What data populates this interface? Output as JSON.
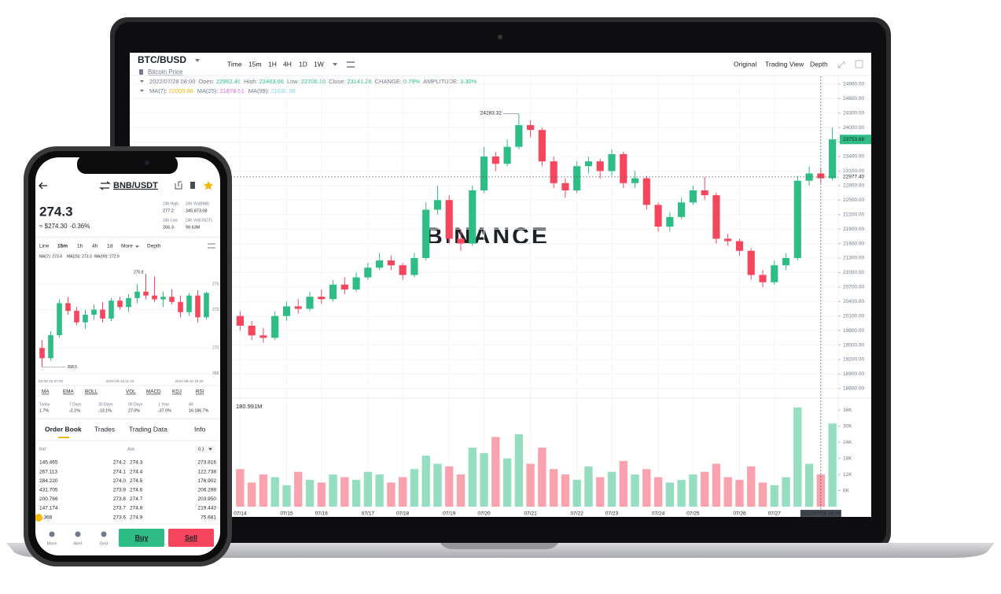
{
  "laptop": {
    "pair": "BTC/BUSD",
    "subtitle": "Bitcoin Price",
    "intervals": [
      "Time",
      "15m",
      "1H",
      "4H",
      "1D",
      "1W"
    ],
    "active_interval": "4H",
    "views": [
      "Original",
      "Trading View",
      "Depth"
    ],
    "active_view": "Original",
    "info_time": "2022/07/28 08:00",
    "info": [
      {
        "label": "Open:",
        "value": "22962.49"
      },
      {
        "label": "High:",
        "value": "23463.66"
      },
      {
        "label": "Low:",
        "value": "22706.10"
      },
      {
        "label": "Close:",
        "value": "23141.26"
      },
      {
        "label": "CHANGE:",
        "value": "0.79%"
      },
      {
        "label": "AMPLITUDE:",
        "value": "3.30%"
      }
    ],
    "ma_legend": [
      {
        "label": "MA(7):",
        "value": "22005.86",
        "color": "#f0b90b"
      },
      {
        "label": "MA(25):",
        "value": "21878.51",
        "color": "#e05fd7"
      },
      {
        "label": "MA(99):",
        "value": "21630.98",
        "color": "#7fdbe8"
      }
    ],
    "watermark": "BINANCE"
  },
  "phone": {
    "pair": "BNB/USDT",
    "price": "274.3",
    "price_usd": "≈ $274.30",
    "change": "-0.36%",
    "stats": [
      {
        "label": "24h High",
        "value": "277.2"
      },
      {
        "label": "24h Vol(BNB)",
        "value": "345,873.08"
      },
      {
        "label": "24h Low",
        "value": "266.3"
      },
      {
        "label": "24h Vol(USDT)",
        "value": "99.63M"
      }
    ],
    "tabs": [
      "Line",
      "15m",
      "1h",
      "4h",
      "1d",
      "More",
      "Depth"
    ],
    "active_tab": "15m",
    "ma_legend": [
      {
        "text": "MA(7): 273.4",
        "color": "#f0b90b"
      },
      {
        "text": "MA(25): 273.3",
        "color": "#e05fd7"
      },
      {
        "text": "MA(99): 272.9",
        "color": "#8a5cd0"
      }
    ],
    "indicators": [
      "MA",
      "EMA",
      "BOLL",
      "VOL",
      "MACD",
      "KDJ",
      "RSI"
    ],
    "performance": [
      {
        "label": "Today",
        "value": "1.7%"
      },
      {
        "label": "7 Days",
        "value": "-2.1%"
      },
      {
        "label": "30 Days",
        "value": "-13.1%"
      },
      {
        "label": "90 Days",
        "value": "27.0%"
      },
      {
        "label": "1 Year",
        "value": "-37.0%"
      },
      {
        "label": "All",
        "value": "16,186.7%"
      }
    ],
    "sections": [
      "Order Book",
      "Trades",
      "Trading Data",
      "Info"
    ],
    "order_book": {
      "headers": [
        "Bid",
        "Ask"
      ],
      "precision": "0.1",
      "rows": [
        [
          "145.465",
          "274.2",
          "274.3",
          "273.816"
        ],
        [
          "267.113",
          "274.1",
          "274.4",
          "122.738"
        ],
        [
          "284.220",
          "274.0",
          "274.5",
          "176.902"
        ],
        [
          "431.705",
          "273.9",
          "274.6",
          "206.298"
        ],
        [
          "200.766",
          "273.8",
          "274.7",
          "203.950"
        ],
        [
          "147.174",
          "273.7",
          "274.8",
          "219.443"
        ],
        [
          "6.368",
          "273.6",
          "274.9",
          "75.681"
        ]
      ]
    },
    "footer": [
      "More",
      "Alert",
      "Grid"
    ],
    "buy": "Buy",
    "sell": "Sell"
  },
  "chart_data": [
    {
      "type": "candlestick",
      "up_color": "#2ebd85",
      "down_color": "#f6465d",
      "grid": true,
      "categories": [
        "07/14",
        null,
        null,
        null,
        "07/15",
        null,
        null,
        "07/16",
        null,
        null,
        null,
        "07/17",
        null,
        null,
        "07/18",
        null,
        null,
        null,
        "07/19",
        null,
        null,
        "07/20",
        null,
        null,
        null,
        "07/21",
        null,
        null,
        null,
        "07/22",
        null,
        null,
        "07/23",
        null,
        null,
        null,
        "07/24",
        null,
        null,
        "07/25",
        null,
        null,
        null,
        "07/26",
        null,
        null,
        "07/27",
        null,
        null,
        null,
        "2022/07/28 08:00",
        null
      ],
      "open": [
        20100,
        19900,
        19700,
        19650,
        20100,
        20300,
        20250,
        20500,
        20450,
        20750,
        20650,
        20900,
        21100,
        21250,
        21150,
        20950,
        21300,
        22300,
        22500,
        21700,
        21600,
        22700,
        23400,
        23250,
        23600,
        24050,
        23950,
        23300,
        22850,
        22700,
        23200,
        23300,
        23100,
        23450,
        22850,
        22950,
        22400,
        21950,
        22150,
        22450,
        22700,
        22600,
        21700,
        21650,
        21450,
        20950,
        20800,
        21150,
        21300,
        22900,
        23050,
        22950
      ],
      "high": [
        20200,
        20000,
        19850,
        20200,
        20400,
        20450,
        20600,
        20650,
        20850,
        20900,
        21000,
        21200,
        21400,
        21350,
        21200,
        21400,
        22450,
        22800,
        22600,
        21900,
        22800,
        23600,
        23500,
        23750,
        24283.32,
        24150,
        24000,
        23400,
        22950,
        23300,
        23400,
        23350,
        23550,
        23500,
        23100,
        23000,
        22450,
        22250,
        22550,
        22800,
        22980,
        22650,
        21800,
        21700,
        21500,
        21050,
        21250,
        21400,
        23000,
        23200,
        23150,
        24000
      ],
      "low": [
        19800,
        19600,
        19550,
        19600,
        20000,
        20150,
        20200,
        20350,
        20400,
        20550,
        20600,
        20850,
        21050,
        21050,
        20850,
        20900,
        21250,
        22200,
        21600,
        21450,
        21550,
        22650,
        23100,
        23200,
        23550,
        23800,
        23200,
        22750,
        22550,
        22650,
        23050,
        22950,
        23000,
        22750,
        22750,
        22300,
        21850,
        21850,
        22100,
        22400,
        22500,
        21600,
        21550,
        21350,
        20850,
        20700,
        20750,
        21050,
        21250,
        22800,
        22850,
        22900
      ],
      "close": [
        19900,
        19700,
        19650,
        20100,
        20300,
        20250,
        20500,
        20450,
        20750,
        20650,
        20900,
        21100,
        21250,
        21150,
        20950,
        21300,
        22300,
        22500,
        21700,
        21600,
        22700,
        23400,
        23250,
        23600,
        24050,
        23950,
        23300,
        22850,
        22700,
        23200,
        23300,
        23100,
        23450,
        22850,
        22950,
        22400,
        21950,
        22150,
        22450,
        22700,
        22600,
        21700,
        21650,
        21450,
        20950,
        20800,
        21150,
        21300,
        22900,
        23050,
        22950,
        23753.68
      ],
      "ylim": [
        18500,
        25060
      ],
      "yticks": [
        {
          "value": 24900,
          "label": "24900.00"
        },
        {
          "value": 24600,
          "label": "24600.00"
        },
        {
          "value": 24300,
          "label": "24300.00"
        },
        {
          "value": 24000,
          "label": "24000.00"
        },
        {
          "value": 23700,
          "label": "23700.00"
        },
        {
          "value": 23400,
          "label": "23400.00"
        },
        {
          "value": 23100,
          "label": "23100.00"
        },
        {
          "value": 22800,
          "label": "22800.00"
        },
        {
          "value": 22500,
          "label": "22500.00"
        },
        {
          "value": 22200,
          "label": "22200.00"
        },
        {
          "value": 21900,
          "label": "21900.00"
        },
        {
          "value": 21600,
          "label": "21600.00"
        },
        {
          "value": 21300,
          "label": "21300.00"
        },
        {
          "value": 21000,
          "label": "21000.00"
        },
        {
          "value": 20700,
          "label": "20700.00"
        },
        {
          "value": 20400,
          "label": "20400.00"
        },
        {
          "value": 20100,
          "label": "20100.00"
        },
        {
          "value": 19800,
          "label": "19800.00"
        },
        {
          "value": 19500,
          "label": "19500.00"
        },
        {
          "value": 19200,
          "label": "19200.00"
        },
        {
          "value": 18900,
          "label": "18900.00"
        },
        {
          "value": 18600,
          "label": "18600.00"
        }
      ],
      "crosshair": {
        "value": 22977.4,
        "label": "22977.40"
      },
      "volume": [
        14,
        9,
        12,
        11,
        8,
        13,
        10,
        9,
        12,
        11,
        10,
        13,
        12,
        9,
        11,
        14,
        19,
        16,
        15,
        12,
        22,
        20,
        26,
        18,
        27,
        16,
        22,
        14,
        12,
        10,
        15,
        11,
        13,
        17,
        12,
        14,
        11,
        9,
        10,
        12,
        13,
        16,
        11,
        10,
        15,
        9,
        8,
        11,
        37,
        16,
        12,
        31
      ],
      "volume_label": "180.991M",
      "vlim": [
        0,
        39
      ],
      "vticks": [
        {
          "value": 36,
          "label": "36K"
        },
        {
          "value": 30,
          "label": "30K"
        },
        {
          "value": 24,
          "label": "24K"
        },
        {
          "value": 18,
          "label": "18K"
        },
        {
          "value": 12,
          "label": "12K"
        },
        {
          "value": 6,
          "label": "6K"
        }
      ]
    },
    {
      "type": "candlestick",
      "up_color": "#2ebd85",
      "down_color": "#f6465d",
      "categories": [
        null,
        "22-09-16 07:00",
        null,
        null,
        null,
        null,
        null,
        null,
        null,
        "2022-09-16 11:15",
        null,
        null,
        null,
        null,
        null,
        null,
        null,
        "2022-09-16 15:30",
        null,
        null
      ],
      "open": [
        270.0,
        269.2,
        271.0,
        273.5,
        272.9,
        272.0,
        272.6,
        273.0,
        272.3,
        273.7,
        273.2,
        273.9,
        274.4,
        274.1,
        273.8,
        274.0,
        273.6,
        272.8,
        274.1,
        272.4
      ],
      "high": [
        270.6,
        271.3,
        273.8,
        274.0,
        273.2,
        273.0,
        273.4,
        273.6,
        273.9,
        274.0,
        274.2,
        275.0,
        275.8,
        275.6,
        274.4,
        274.6,
        274.1,
        274.3,
        274.5,
        274.4
      ],
      "low": [
        268.5,
        269.0,
        270.8,
        272.6,
        271.8,
        271.5,
        272.2,
        272.0,
        272.1,
        273.0,
        272.8,
        273.5,
        273.8,
        273.6,
        273.2,
        273.4,
        272.4,
        272.5,
        272.0,
        272.2
      ],
      "close": [
        269.2,
        271.0,
        273.5,
        272.9,
        272.0,
        272.6,
        273.0,
        272.3,
        273.7,
        273.2,
        273.9,
        274.4,
        274.1,
        273.8,
        274.0,
        273.6,
        272.8,
        274.1,
        272.4,
        274.3
      ],
      "ylim": [
        267.8,
        276.6
      ],
      "yticks": [
        275,
        273,
        270,
        268
      ]
    }
  ]
}
